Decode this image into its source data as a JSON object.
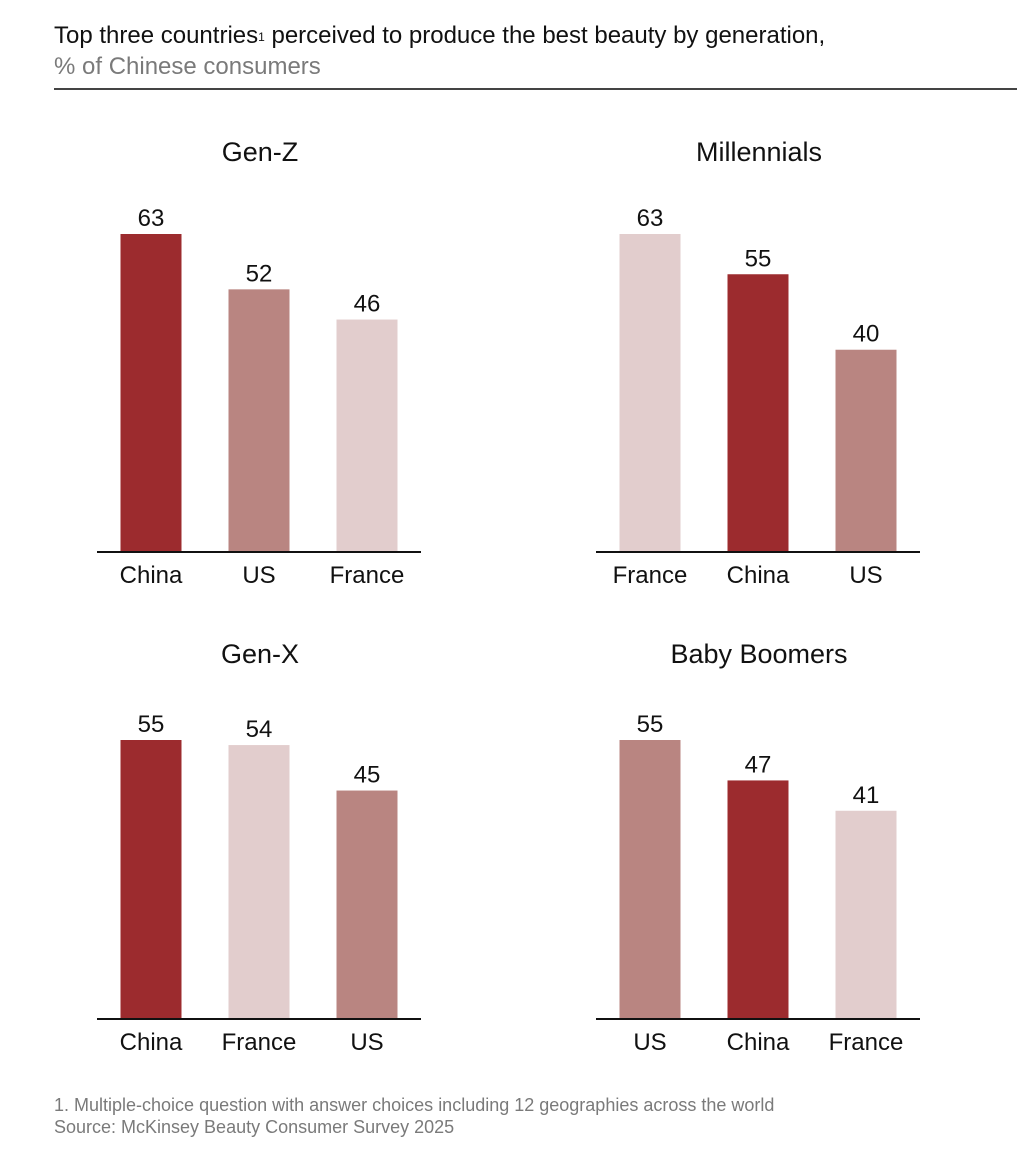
{
  "header": {
    "title": "Top three countries",
    "title_superscript": "1",
    "title_rest": " perceived to produce the best beauty by generation,",
    "subtitle": "% of Chinese consumers"
  },
  "colors": {
    "China": "#9c2b2e",
    "US": "#b98581",
    "France": "#e2cdcd",
    "axis": "#111111",
    "rule": "#444444",
    "muted_text": "#7a7a7a"
  },
  "chart_data": [
    {
      "type": "bar",
      "title": "Gen-Z",
      "categories": [
        "China",
        "US",
        "France"
      ],
      "values": [
        63,
        52,
        46
      ],
      "ylim": [
        0,
        63
      ],
      "grid": false
    },
    {
      "type": "bar",
      "title": "Millennials",
      "categories": [
        "France",
        "China",
        "US"
      ],
      "values": [
        63,
        55,
        40
      ],
      "ylim": [
        0,
        63
      ],
      "grid": false
    },
    {
      "type": "bar",
      "title": "Gen-X",
      "categories": [
        "China",
        "France",
        "US"
      ],
      "values": [
        55,
        54,
        45
      ],
      "ylim": [
        0,
        55
      ],
      "grid": false
    },
    {
      "type": "bar",
      "title": "Baby Boomers",
      "categories": [
        "US",
        "China",
        "France"
      ],
      "values": [
        55,
        47,
        41
      ],
      "ylim": [
        0,
        55
      ],
      "grid": false
    }
  ],
  "footnotes": {
    "note": "1. Multiple-choice question with answer choices including 12 geographies across the world",
    "source": "Source: McKinsey Beauty Consumer Survey 2025"
  }
}
